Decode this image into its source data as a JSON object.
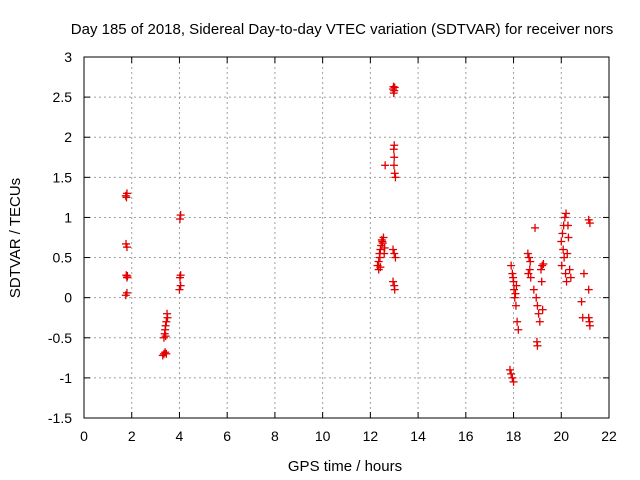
{
  "chart_data": {
    "type": "scatter",
    "title": "Day 185 of 2018, Sidereal Day-to-day VTEC variation (SDTVAR) for receiver nors",
    "xlabel": "GPS time / hours",
    "ylabel": "SDTVAR / TECUs",
    "xlim": [
      0,
      22
    ],
    "ylim": [
      -1.5,
      3
    ],
    "x_ticks": [
      0,
      2,
      4,
      6,
      8,
      10,
      12,
      14,
      16,
      18,
      20,
      22
    ],
    "y_ticks": [
      -1.5,
      -1,
      -0.5,
      0,
      0.5,
      1,
      1.5,
      2,
      2.5,
      3
    ],
    "y_tick_labels": [
      "-1.5",
      "-1",
      "-0.5",
      "0",
      "0.5",
      "1",
      "1.5",
      "2",
      "2.5",
      "3"
    ],
    "grid": true,
    "marker": "+",
    "marker_color": "#e00000",
    "series": [
      {
        "name": "SDTVAR",
        "points": [
          [
            1.75,
            1.27
          ],
          [
            1.78,
            1.25
          ],
          [
            1.8,
            1.3
          ],
          [
            1.76,
            0.67
          ],
          [
            1.8,
            0.63
          ],
          [
            1.77,
            0.28
          ],
          [
            1.8,
            0.25
          ],
          [
            1.82,
            0.27
          ],
          [
            1.75,
            0.03
          ],
          [
            1.8,
            0.06
          ],
          [
            3.3,
            -0.72
          ],
          [
            3.35,
            -0.7
          ],
          [
            3.4,
            -0.68
          ],
          [
            3.45,
            -0.7
          ],
          [
            3.35,
            -0.5
          ],
          [
            3.38,
            -0.45
          ],
          [
            3.4,
            -0.4
          ],
          [
            3.42,
            -0.35
          ],
          [
            3.45,
            -0.3
          ],
          [
            3.5,
            -0.25
          ],
          [
            3.48,
            -0.2
          ],
          [
            3.42,
            -0.48
          ],
          [
            4.05,
            1.03
          ],
          [
            4.02,
            0.98
          ],
          [
            4.05,
            0.28
          ],
          [
            4.02,
            0.25
          ],
          [
            4.05,
            0.15
          ],
          [
            4.0,
            0.1
          ],
          [
            12.3,
            0.4
          ],
          [
            12.35,
            0.45
          ],
          [
            12.4,
            0.5
          ],
          [
            12.38,
            0.55
          ],
          [
            12.42,
            0.6
          ],
          [
            12.45,
            0.65
          ],
          [
            12.5,
            0.7
          ],
          [
            12.55,
            0.75
          ],
          [
            12.48,
            0.72
          ],
          [
            12.52,
            0.68
          ],
          [
            12.6,
            0.62
          ],
          [
            12.35,
            0.35
          ],
          [
            12.42,
            0.38
          ],
          [
            12.58,
            0.55
          ],
          [
            12.62,
            1.65
          ],
          [
            12.95,
            2.6
          ],
          [
            12.97,
            2.63
          ],
          [
            13.0,
            2.58
          ],
          [
            13.02,
            2.62
          ],
          [
            12.98,
            2.55
          ],
          [
            13.0,
            1.9
          ],
          [
            12.98,
            1.85
          ],
          [
            13.0,
            1.75
          ],
          [
            12.99,
            1.65
          ],
          [
            13.02,
            1.55
          ],
          [
            13.05,
            1.5
          ],
          [
            12.95,
            0.6
          ],
          [
            13.0,
            0.55
          ],
          [
            13.05,
            0.5
          ],
          [
            12.95,
            0.2
          ],
          [
            13.0,
            0.15
          ],
          [
            13.02,
            0.1
          ],
          [
            17.85,
            -0.9
          ],
          [
            17.9,
            -0.95
          ],
          [
            17.95,
            -1.0
          ],
          [
            18.0,
            -1.05
          ],
          [
            17.9,
            0.4
          ],
          [
            17.95,
            0.3
          ],
          [
            18.0,
            0.2
          ],
          [
            18.02,
            0.1
          ],
          [
            18.05,
            0.0
          ],
          [
            18.1,
            -0.1
          ],
          [
            17.98,
            0.25
          ],
          [
            18.15,
            -0.3
          ],
          [
            18.2,
            -0.4
          ],
          [
            18.08,
            0.05
          ],
          [
            18.12,
            0.15
          ],
          [
            18.6,
            0.55
          ],
          [
            18.65,
            0.5
          ],
          [
            18.7,
            0.45
          ],
          [
            18.68,
            0.35
          ],
          [
            18.62,
            0.3
          ],
          [
            18.72,
            0.25
          ],
          [
            18.9,
            0.87
          ],
          [
            18.85,
            0.1
          ],
          [
            18.95,
            0.0
          ],
          [
            19.0,
            -0.1
          ],
          [
            19.05,
            -0.2
          ],
          [
            19.1,
            -0.3
          ],
          [
            18.98,
            -0.55
          ],
          [
            19.0,
            -0.6
          ],
          [
            19.15,
            0.35
          ],
          [
            19.2,
            0.4
          ],
          [
            19.25,
            0.42
          ],
          [
            19.18,
            0.2
          ],
          [
            19.22,
            -0.15
          ],
          [
            20.0,
            0.7
          ],
          [
            20.05,
            0.8
          ],
          [
            20.1,
            0.9
          ],
          [
            20.15,
            1.0
          ],
          [
            20.2,
            1.05
          ],
          [
            20.08,
            0.6
          ],
          [
            20.12,
            0.5
          ],
          [
            20.02,
            0.4
          ],
          [
            20.18,
            0.3
          ],
          [
            20.22,
            0.2
          ],
          [
            20.28,
            0.9
          ],
          [
            20.3,
            0.75
          ],
          [
            20.25,
            0.55
          ],
          [
            20.35,
            0.35
          ],
          [
            20.4,
            0.25
          ],
          [
            20.85,
            -0.05
          ],
          [
            20.9,
            -0.25
          ],
          [
            20.95,
            0.3
          ],
          [
            21.15,
            0.97
          ],
          [
            21.2,
            0.93
          ],
          [
            21.15,
            0.1
          ],
          [
            21.15,
            -0.25
          ],
          [
            21.18,
            -0.3
          ],
          [
            21.2,
            -0.35
          ]
        ]
      }
    ]
  }
}
